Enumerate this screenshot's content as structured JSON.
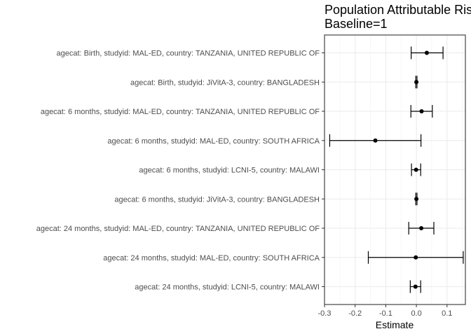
{
  "chart_data": {
    "type": "forest",
    "title": "Population Attributable Ris",
    "subtitle": "Baseline=1",
    "xlabel": "Estimate",
    "ylabel": "",
    "xlim": [
      -0.3,
      0.16
    ],
    "xticks": [
      -0.3,
      -0.2,
      -0.1,
      0.0,
      0.1
    ],
    "xtick_labels": [
      "-0.3",
      "-0.2",
      "-0.1",
      "0.0",
      "0.1"
    ],
    "grid": true,
    "rows": [
      {
        "label": "agecat: Birth, studyid: MAL-ED, country: TANZANIA, UNITED REPUBLIC OF",
        "estimate": 0.034,
        "lower": -0.017,
        "upper": 0.087
      },
      {
        "label": "agecat: Birth, studyid: JiVitA-3, country: BANGLADESH",
        "estimate": 0.0,
        "lower": -0.002,
        "upper": 0.002
      },
      {
        "label": "agecat: 6 months, studyid: MAL-ED, country: TANZANIA, UNITED REPUBLIC OF",
        "estimate": 0.017,
        "lower": -0.018,
        "upper": 0.052
      },
      {
        "label": "agecat: 6 months, studyid: MAL-ED, country: SOUTH AFRICA",
        "estimate": -0.134,
        "lower": -0.283,
        "upper": 0.015
      },
      {
        "label": "agecat: 6 months, studyid: LCNI-5, country: MALAWI",
        "estimate": -0.001,
        "lower": -0.016,
        "upper": 0.014
      },
      {
        "label": "agecat: 6 months, studyid: JiVitA-3, country: BANGLADESH",
        "estimate": 0.0,
        "lower": -0.002,
        "upper": 0.002
      },
      {
        "label": "agecat: 24 months, studyid: MAL-ED, country: TANZANIA, UNITED REPUBLIC OF",
        "estimate": 0.016,
        "lower": -0.025,
        "upper": 0.057
      },
      {
        "label": "agecat: 24 months, studyid: MAL-ED, country: SOUTH AFRICA",
        "estimate": -0.002,
        "lower": -0.157,
        "upper": 0.153
      },
      {
        "label": "agecat: 24 months, studyid: LCNI-5, country: MALAWI",
        "estimate": -0.003,
        "lower": -0.02,
        "upper": 0.014
      }
    ]
  }
}
